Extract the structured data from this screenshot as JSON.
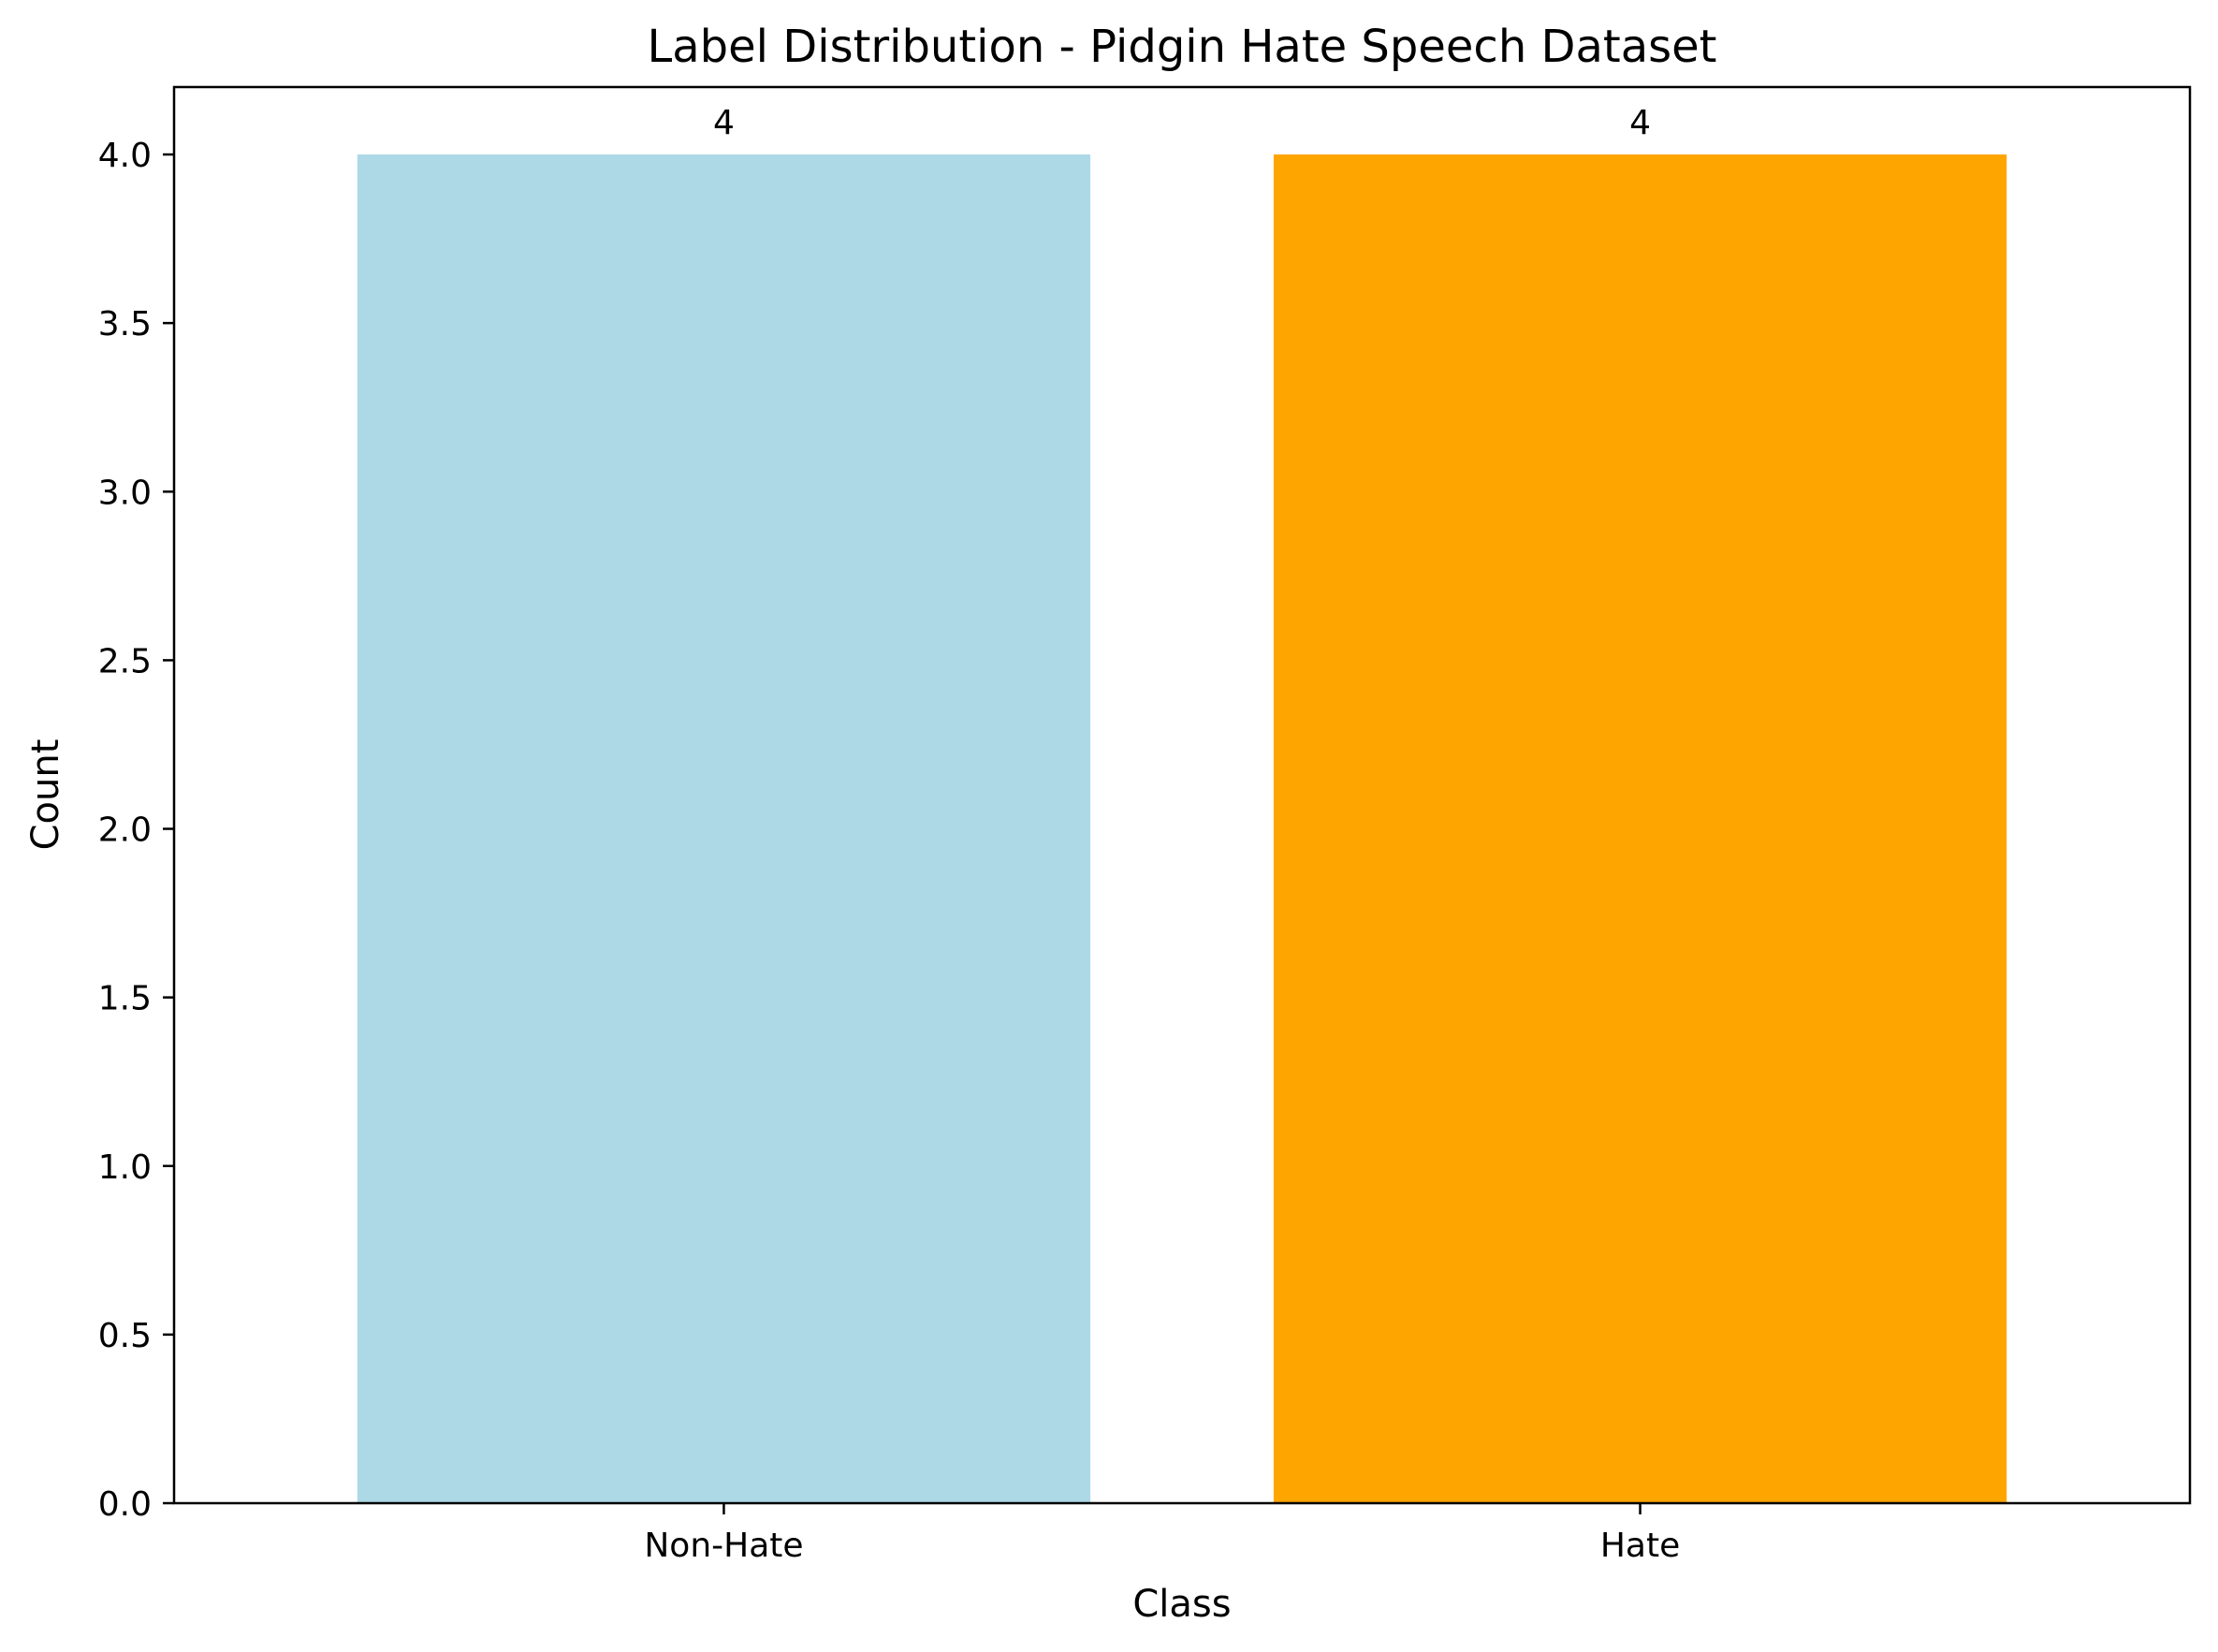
{
  "chart_data": {
    "type": "bar",
    "title": "Label Distribution - Pidgin Hate Speech Dataset",
    "xlabel": "Class",
    "ylabel": "Count",
    "categories": [
      "Non-Hate",
      "Hate"
    ],
    "values": [
      4,
      4
    ],
    "data_labels": [
      "4",
      "4"
    ],
    "colors": [
      "#add8e6",
      "#ffa500"
    ],
    "ylim": [
      0,
      4.2
    ],
    "yticks": [
      0.0,
      0.5,
      1.0,
      1.5,
      2.0,
      2.5,
      3.0,
      3.5,
      4.0
    ],
    "ytick_labels": [
      "0.0",
      "0.5",
      "1.0",
      "1.5",
      "2.0",
      "2.5",
      "3.0",
      "3.5",
      "4.0"
    ],
    "grid": false,
    "legend": "none"
  }
}
